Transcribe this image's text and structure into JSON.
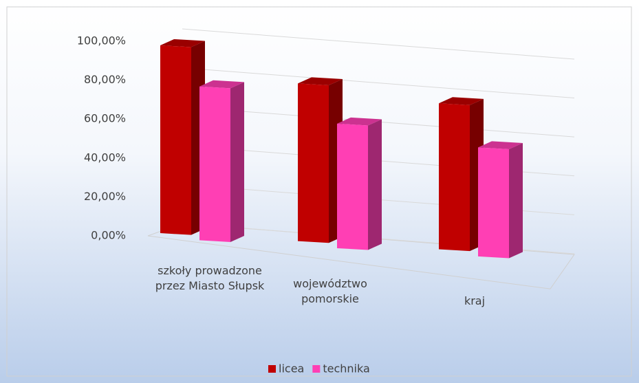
{
  "chart_data": {
    "type": "bar3d",
    "categories": [
      "szkoły prowadzone przez Miasto Słupsk",
      "województwo pomorskie",
      "kraj"
    ],
    "series": [
      {
        "name": "licea",
        "color": "#c00000",
        "values": [
          96.5,
          81,
          75
        ]
      },
      {
        "name": "technika",
        "color": "#ff3fb4",
        "values": [
          79,
          64,
          56
        ]
      }
    ],
    "ylim": [
      0,
      100
    ],
    "yticks": [
      {
        "value": 0,
        "label": "0,00%"
      },
      {
        "value": 20,
        "label": "20,00%"
      },
      {
        "value": 40,
        "label": "40,00%"
      },
      {
        "value": 60,
        "label": "60,00%"
      },
      {
        "value": 80,
        "label": "80,00%"
      },
      {
        "value": 100,
        "label": "100,00%"
      }
    ],
    "grid": true,
    "legend": "bottom"
  }
}
